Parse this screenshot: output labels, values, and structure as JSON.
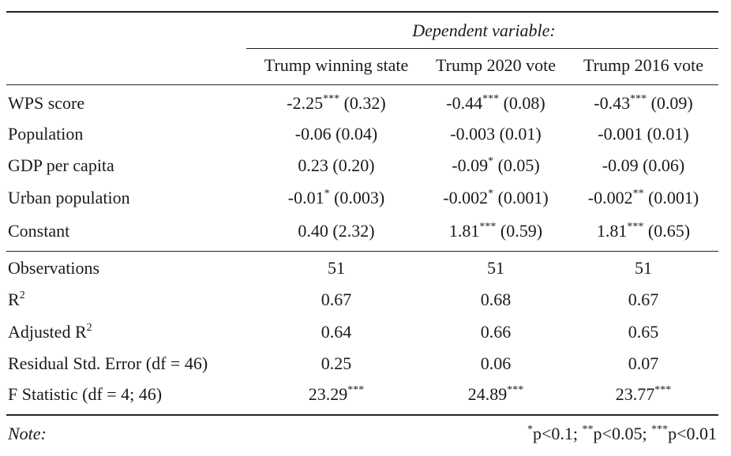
{
  "header": {
    "dep_var": "Dependent variable:",
    "columns": [
      "Trump winning state",
      "Trump 2020 vote",
      "Trump 2016 vote"
    ]
  },
  "rows": [
    {
      "label": "WPS score",
      "cells": [
        {
          "coef": "-2.25",
          "stars": "***",
          "se": " (0.32)"
        },
        {
          "coef": "-0.44",
          "stars": "***",
          "se": " (0.08)"
        },
        {
          "coef": "-0.43",
          "stars": "***",
          "se": " (0.09)"
        }
      ]
    },
    {
      "label": "Population",
      "cells": [
        {
          "coef": "-0.06",
          "stars": "",
          "se": " (0.04)"
        },
        {
          "coef": "-0.003",
          "stars": "",
          "se": " (0.01)"
        },
        {
          "coef": "-0.001",
          "stars": "",
          "se": " (0.01)"
        }
      ]
    },
    {
      "label": "GDP per capita",
      "cells": [
        {
          "coef": "0.23",
          "stars": "",
          "se": " (0.20)"
        },
        {
          "coef": "-0.09",
          "stars": "*",
          "se": " (0.05)"
        },
        {
          "coef": "-0.09",
          "stars": "",
          "se": " (0.06)"
        }
      ]
    },
    {
      "label": "Urban population",
      "cells": [
        {
          "coef": "-0.01",
          "stars": "*",
          "se": " (0.003)"
        },
        {
          "coef": "-0.002",
          "stars": "*",
          "se": " (0.001)"
        },
        {
          "coef": "-0.002",
          "stars": "**",
          "se": " (0.001)"
        }
      ]
    },
    {
      "label": "Constant",
      "cells": [
        {
          "coef": "0.40",
          "stars": "",
          "se": " (2.32)"
        },
        {
          "coef": "1.81",
          "stars": "***",
          "se": " (0.59)"
        },
        {
          "coef": "1.81",
          "stars": "***",
          "se": " (0.65)"
        }
      ]
    }
  ],
  "stats": [
    {
      "label": "Observations",
      "label_sup": "",
      "label_tail": "",
      "values": [
        "51",
        "51",
        "51"
      ],
      "stars": [
        "",
        "",
        ""
      ]
    },
    {
      "label": "R",
      "label_sup": "2",
      "label_tail": "",
      "values": [
        "0.67",
        "0.68",
        "0.67"
      ],
      "stars": [
        "",
        "",
        ""
      ]
    },
    {
      "label": "Adjusted R",
      "label_sup": "2",
      "label_tail": "",
      "values": [
        "0.64",
        "0.66",
        "0.65"
      ],
      "stars": [
        "",
        "",
        ""
      ]
    },
    {
      "label": "Residual Std. Error (df = 46)",
      "label_sup": "",
      "label_tail": "",
      "values": [
        "0.25",
        "0.06",
        "0.07"
      ],
      "stars": [
        "",
        "",
        ""
      ]
    },
    {
      "label": "F Statistic (df = 4; 46)",
      "label_sup": "",
      "label_tail": "",
      "values": [
        "23.29",
        "24.89",
        "23.77"
      ],
      "stars": [
        "***",
        "***",
        "***"
      ]
    }
  ],
  "note": {
    "label": "Note:",
    "parts": [
      {
        "sup": "*",
        "text": "p<0.1; "
      },
      {
        "sup": "**",
        "text": "p<0.05; "
      },
      {
        "sup": "***",
        "text": "p<0.01"
      }
    ]
  }
}
